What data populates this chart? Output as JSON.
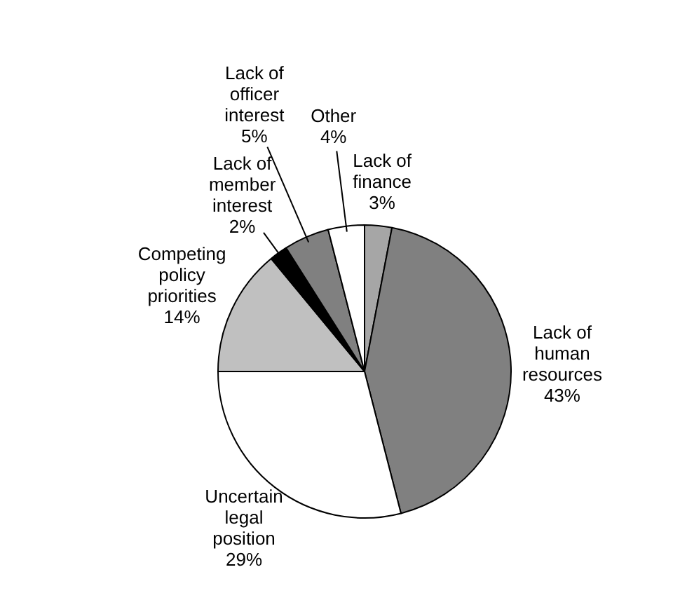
{
  "chart_data": {
    "type": "pie",
    "categories": [
      "Lack of finance",
      "Lack of human resources",
      "Uncertain legal position",
      "Competing policy priorities",
      "Lack of member interest",
      "Lack of officer interest",
      "Other"
    ],
    "values": [
      3,
      43,
      29,
      14,
      2,
      5,
      4
    ],
    "value_labels": [
      "3%",
      "43%",
      "29%",
      "14%",
      "2%",
      "5%",
      "4%"
    ],
    "colors": [
      "#a6a6a6",
      "#808080",
      "#ffffff",
      "#c0c0c0",
      "#000000",
      "#808080",
      "#ffffff"
    ],
    "legend": false
  }
}
